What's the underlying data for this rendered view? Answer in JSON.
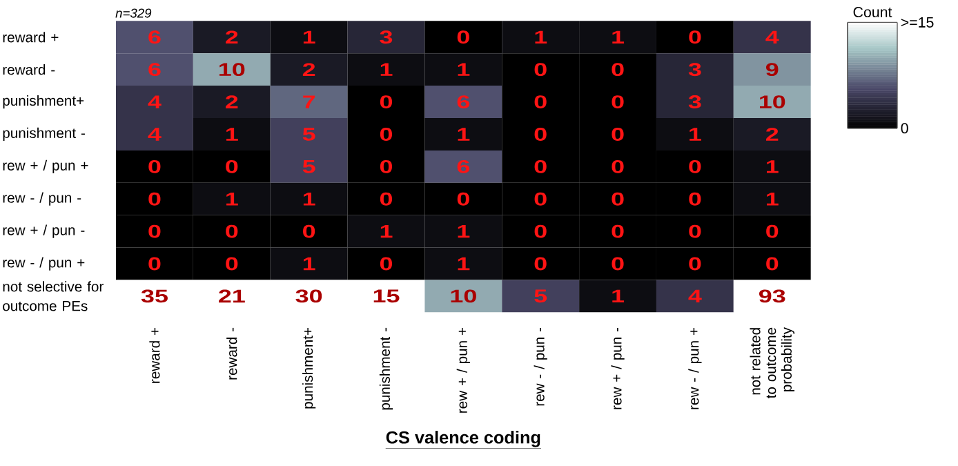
{
  "chart_data": {
    "type": "heatmap",
    "categories": [
      "reward +",
      "reward -",
      "punishment+",
      "punishment -",
      "rew + / pun +",
      "rew - / pun -",
      "rew + / pun -",
      "rew - / pun +",
      "not related to outcome probability"
    ],
    "y_categories": [
      "reward +",
      "reward -",
      "punishment+",
      "punishment -",
      "rew + / pun +",
      "rew - / pun -",
      "rew + / pun -",
      "rew - / pun +",
      "not selective for outcome PEs"
    ],
    "cells": [
      [
        6,
        2,
        1,
        3,
        0,
        1,
        1,
        0,
        4
      ],
      [
        6,
        10,
        2,
        1,
        1,
        0,
        0,
        3,
        9
      ],
      [
        4,
        2,
        7,
        0,
        6,
        0,
        0,
        3,
        10
      ],
      [
        4,
        1,
        5,
        0,
        1,
        0,
        0,
        1,
        2
      ],
      [
        0,
        0,
        5,
        0,
        6,
        0,
        0,
        0,
        1
      ],
      [
        0,
        1,
        1,
        0,
        0,
        0,
        0,
        0,
        1
      ],
      [
        0,
        0,
        0,
        1,
        1,
        0,
        0,
        0,
        0
      ],
      [
        0,
        0,
        1,
        0,
        1,
        0,
        0,
        0,
        0
      ],
      [
        35,
        21,
        30,
        15,
        10,
        5,
        1,
        4,
        93
      ]
    ],
    "data_labels": true,
    "clim": [
      0,
      15
    ],
    "cticks": [
      0,
      {
        "value": 15,
        "label": ">=15"
      }
    ],
    "clabel": "Count",
    "xlabel": "CS valence coding",
    "annotations": [
      "*n=329*"
    ]
  }
}
